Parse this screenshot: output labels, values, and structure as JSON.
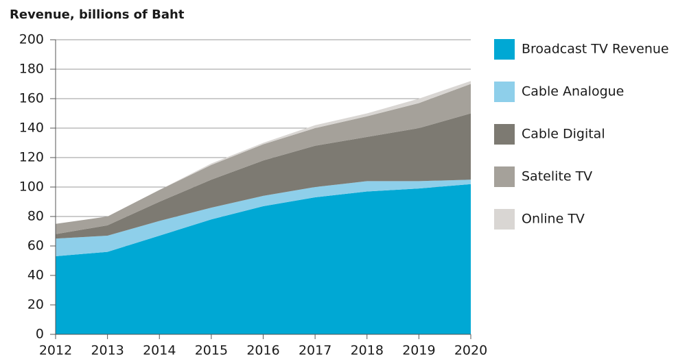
{
  "chart_data": {
    "type": "stacked_area",
    "title": "Revenue, billions of Baht",
    "categories": [
      "2012",
      "2013",
      "2014",
      "2015",
      "2016",
      "2017",
      "2018",
      "2019",
      "2020"
    ],
    "series": [
      {
        "name": "Broadcast TV Revenue",
        "color": "#00a8d4",
        "values": [
          53,
          56,
          67,
          78,
          87,
          93,
          97,
          99,
          102
        ]
      },
      {
        "name": "Cable Analogue",
        "color": "#8ecfea",
        "values": [
          12,
          11,
          10,
          8,
          7,
          7,
          7,
          5,
          3
        ]
      },
      {
        "name": "Cable Digital",
        "color": "#7d7a72",
        "values": [
          3,
          7,
          13,
          19,
          24,
          28,
          30,
          36,
          45
        ]
      },
      {
        "name": "Satelite TV",
        "color": "#a5a19a",
        "values": [
          7,
          6,
          8,
          10,
          11,
          12,
          14,
          17,
          20
        ]
      },
      {
        "name": "Online TV",
        "color": "#d9d6d3",
        "values": [
          0,
          0,
          0,
          1,
          1,
          2,
          2,
          3,
          2
        ]
      }
    ],
    "ylim": [
      0,
      200
    ],
    "yticks": [
      0,
      20,
      40,
      60,
      80,
      100,
      120,
      140,
      160,
      180,
      200
    ],
    "grid": true,
    "legend": "right"
  }
}
